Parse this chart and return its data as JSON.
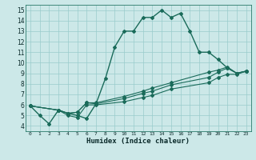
{
  "title": "",
  "xlabel": "Humidex (Indice chaleur)",
  "bg_color": "#cce8e8",
  "grid_color": "#99cccc",
  "line_color": "#1a6b5a",
  "xlim": [
    -0.5,
    23.5
  ],
  "ylim": [
    3.5,
    15.5
  ],
  "xticks": [
    0,
    1,
    2,
    3,
    4,
    5,
    6,
    7,
    8,
    9,
    10,
    11,
    12,
    13,
    14,
    15,
    16,
    17,
    18,
    19,
    20,
    21,
    22,
    23
  ],
  "yticks": [
    4,
    5,
    6,
    7,
    8,
    9,
    10,
    11,
    12,
    13,
    14,
    15
  ],
  "line1_x": [
    0,
    1,
    2,
    3,
    4,
    5,
    6,
    7,
    8,
    9,
    10,
    11,
    12,
    13,
    14,
    15,
    16,
    17,
    18,
    19,
    20,
    21,
    22,
    23
  ],
  "line1_y": [
    5.9,
    5.0,
    4.2,
    5.5,
    5.2,
    5.0,
    4.7,
    6.1,
    8.5,
    11.5,
    13.0,
    13.0,
    14.3,
    14.3,
    15.0,
    14.3,
    14.7,
    13.0,
    11.0,
    11.0,
    10.3,
    9.5,
    9.0,
    9.2
  ],
  "line2_x": [
    0,
    3,
    4,
    5,
    6,
    7,
    10,
    12,
    13,
    15,
    19,
    20,
    21,
    22,
    23
  ],
  "line2_y": [
    5.9,
    5.5,
    5.2,
    5.3,
    6.2,
    6.1,
    6.6,
    7.1,
    7.3,
    7.9,
    8.6,
    9.1,
    9.5,
    9.0,
    9.2
  ],
  "line3_x": [
    0,
    3,
    4,
    5,
    6,
    7,
    10,
    12,
    13,
    15,
    19,
    20,
    21,
    22,
    23
  ],
  "line3_y": [
    5.9,
    5.5,
    5.0,
    4.8,
    6.0,
    6.0,
    6.3,
    6.7,
    6.9,
    7.5,
    8.1,
    8.6,
    8.9,
    8.9,
    9.2
  ],
  "line4_x": [
    0,
    3,
    4,
    5,
    6,
    7,
    10,
    12,
    13,
    15,
    19,
    20,
    21,
    22,
    23
  ],
  "line4_y": [
    5.9,
    5.5,
    5.2,
    5.3,
    6.2,
    6.2,
    6.8,
    7.3,
    7.6,
    8.1,
    9.1,
    9.3,
    9.6,
    9.0,
    9.2
  ]
}
